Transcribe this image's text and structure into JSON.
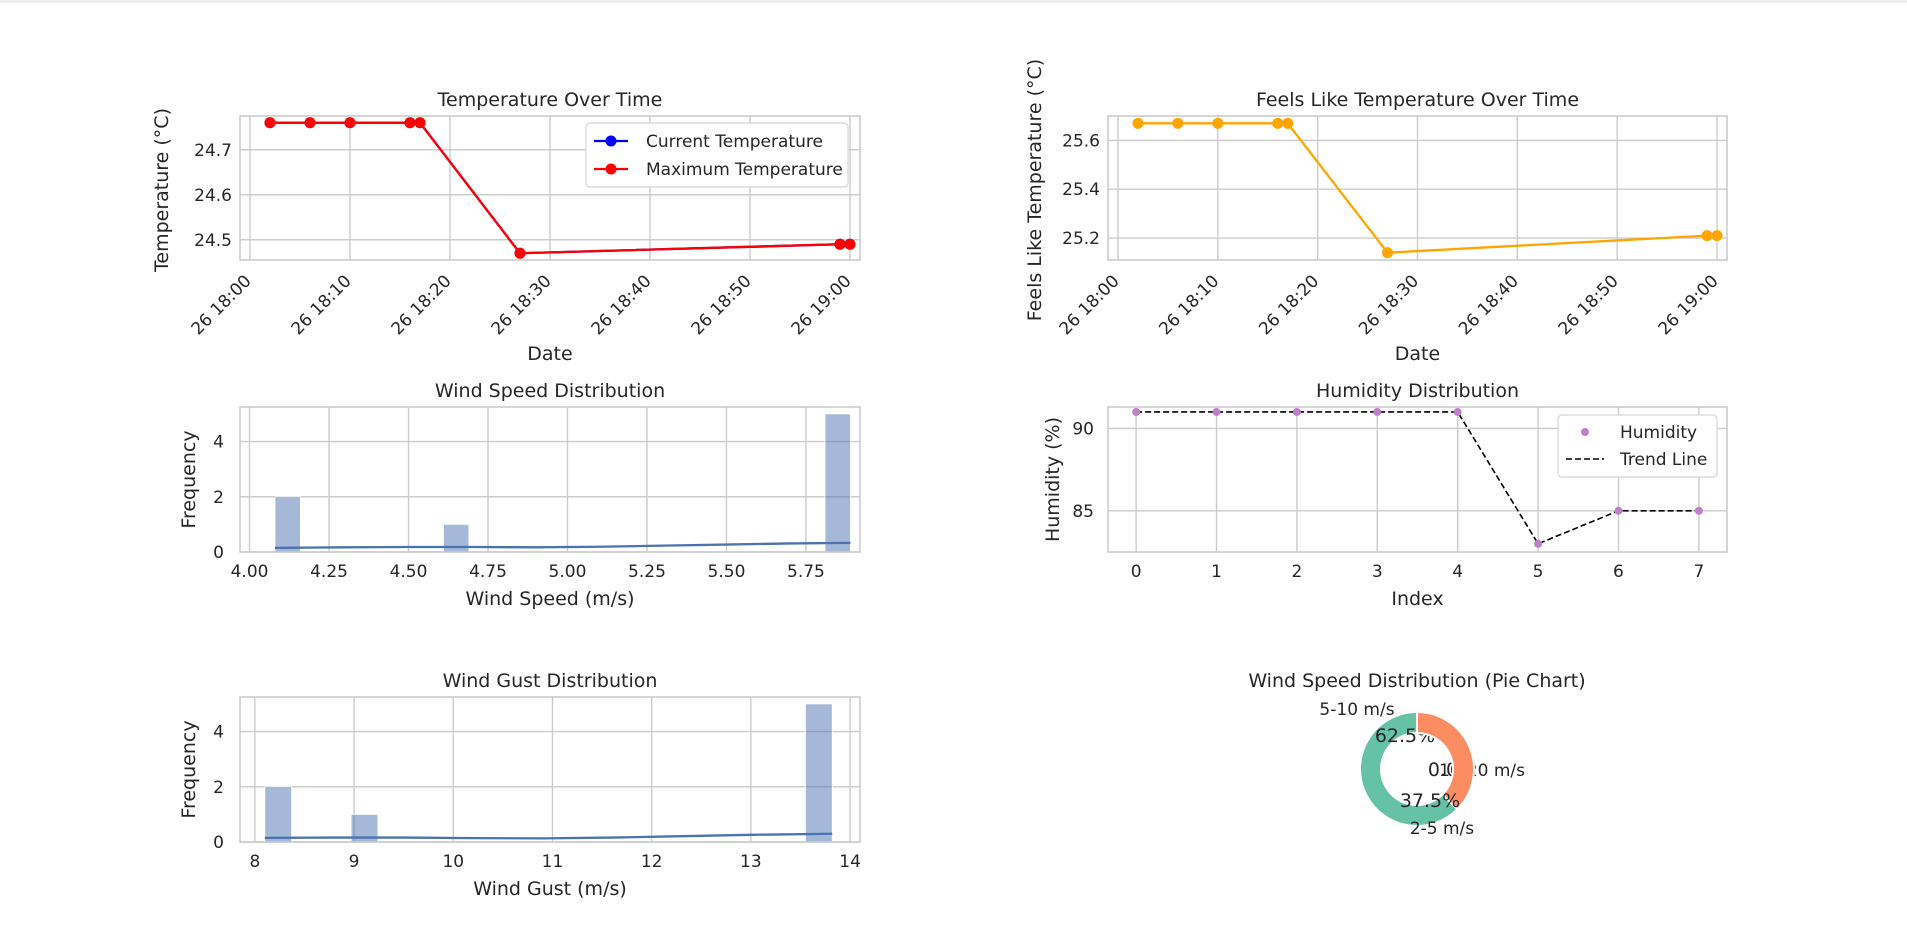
{
  "chart_data": [
    {
      "type": "line",
      "title": "Temperature Over Time",
      "xlabel": "Date",
      "ylabel": "Temperature (°C)",
      "x": [
        "26 18:02",
        "26 18:06",
        "26 18:10",
        "26 18:16",
        "26 18:17",
        "26 18:27",
        "26 18:59",
        "26 19:00"
      ],
      "xticks": [
        "26 18:00",
        "26 18:10",
        "26 18:20",
        "26 18:30",
        "26 18:40",
        "26 18:50",
        "26 19:00"
      ],
      "xlim": [
        "26 17:59",
        "26 19:01"
      ],
      "yticks": [
        "24.5",
        "24.6",
        "24.7"
      ],
      "ylim": [
        24.455,
        24.775
      ],
      "grid": true,
      "legend": "top-right",
      "series": [
        {
          "name": "Current Temperature",
          "color": "#0000ff",
          "values": [
            24.76,
            24.76,
            24.76,
            24.76,
            24.76,
            24.47,
            24.49,
            24.49
          ]
        },
        {
          "name": "Maximum Temperature",
          "color": "#ff0000",
          "values": [
            24.76,
            24.76,
            24.76,
            24.76,
            24.76,
            24.47,
            24.49,
            24.49
          ]
        }
      ]
    },
    {
      "type": "line",
      "title": "Feels Like Temperature Over Time",
      "xlabel": "Date",
      "ylabel": "Feels Like Temperature (°C)",
      "x": [
        "26 18:02",
        "26 18:06",
        "26 18:10",
        "26 18:16",
        "26 18:17",
        "26 18:27",
        "26 18:59",
        "26 19:00"
      ],
      "xticks": [
        "26 18:00",
        "26 18:10",
        "26 18:20",
        "26 18:30",
        "26 18:40",
        "26 18:50",
        "26 19:00"
      ],
      "xlim": [
        "26 17:59",
        "26 19:01"
      ],
      "yticks": [
        "25.2",
        "25.4",
        "25.6"
      ],
      "ylim": [
        25.11,
        25.7
      ],
      "grid": true,
      "series": [
        {
          "color": "#ffa500",
          "values": [
            25.67,
            25.67,
            25.67,
            25.67,
            25.67,
            25.14,
            25.21,
            25.21
          ]
        }
      ]
    },
    {
      "type": "bar",
      "title": "Wind Speed Distribution",
      "xlabel": "Wind Speed (m/s)",
      "ylabel": "Frequency",
      "xticks": [
        "4.00",
        "4.25",
        "4.50",
        "4.75",
        "5.00",
        "5.25",
        "5.50",
        "5.75"
      ],
      "xlim": [
        3.97,
        5.92
      ],
      "yticks": [
        "0",
        "2",
        "4"
      ],
      "ylim": [
        0,
        5.25
      ],
      "grid": true,
      "bar_color": "#4c72b0",
      "bins": [
        {
          "x0": 4.08,
          "x1": 4.16,
          "count": 2
        },
        {
          "x0": 4.61,
          "x1": 4.69,
          "count": 1
        },
        {
          "x0": 5.81,
          "x1": 5.89,
          "count": 5
        }
      ],
      "kde": {
        "color": "#4c72b0",
        "x": [
          4.08,
          4.3,
          4.5,
          4.7,
          4.9,
          5.1,
          5.3,
          5.5,
          5.7,
          5.89
        ],
        "y": [
          0.15,
          0.17,
          0.18,
          0.18,
          0.17,
          0.19,
          0.23,
          0.27,
          0.31,
          0.33
        ]
      }
    },
    {
      "type": "scatter",
      "title": "Humidity Distribution",
      "xlabel": "Index",
      "ylabel": "Humidity (%)",
      "xticks": [
        "0",
        "1",
        "2",
        "3",
        "4",
        "5",
        "6",
        "7"
      ],
      "xlim": [
        -0.35,
        7.35
      ],
      "yticks": [
        "85",
        "90"
      ],
      "ylim": [
        82.5,
        91.3
      ],
      "grid": true,
      "legend": "top-right",
      "series": [
        {
          "name": "Humidity",
          "color": "#c17fcb",
          "x": [
            0,
            1,
            2,
            3,
            4,
            5,
            6,
            7
          ],
          "values": [
            91,
            91,
            91,
            91,
            91,
            83,
            85,
            85
          ]
        },
        {
          "name": "Trend Line",
          "color": "#000000",
          "style": "dashed",
          "x": [
            0,
            1,
            2,
            3,
            4,
            5,
            6,
            7
          ],
          "values": [
            91,
            91,
            91,
            91,
            91,
            83,
            85,
            85
          ]
        }
      ]
    },
    {
      "type": "bar",
      "title": "Wind Gust Distribution",
      "xlabel": "Wind Gust (m/s)",
      "ylabel": "Frequency",
      "xticks": [
        "8",
        "9",
        "10",
        "11",
        "12",
        "13",
        "14"
      ],
      "xlim": [
        7.85,
        14.1
      ],
      "yticks": [
        "0",
        "2",
        "4"
      ],
      "ylim": [
        0,
        5.25
      ],
      "grid": true,
      "bar_color": "#4c72b0",
      "bins": [
        {
          "x0": 8.1,
          "x1": 8.37,
          "count": 2
        },
        {
          "x0": 8.97,
          "x1": 9.24,
          "count": 1
        },
        {
          "x0": 13.55,
          "x1": 13.82,
          "count": 5
        }
      ],
      "kde": {
        "color": "#4c72b0",
        "x": [
          8.1,
          8.8,
          9.5,
          10.2,
          10.9,
          11.6,
          12.3,
          13.0,
          13.82
        ],
        "y": [
          0.15,
          0.16,
          0.16,
          0.14,
          0.13,
          0.16,
          0.21,
          0.26,
          0.3
        ]
      }
    },
    {
      "type": "pie",
      "title": "Wind Speed Distribution (Pie Chart)",
      "donut": true,
      "slices": [
        {
          "label": "5-10 m/s",
          "value": 62.5,
          "pct": "62.5%",
          "color": "#66c2a5"
        },
        {
          "label": "10-20 m/s",
          "value": 0.0,
          "pct": "0.0%",
          "color": "#8da0cb"
        },
        {
          "label": "2-5 m/s",
          "value": 37.5,
          "pct": "37.5%",
          "color": "#fc8d62"
        }
      ]
    }
  ]
}
